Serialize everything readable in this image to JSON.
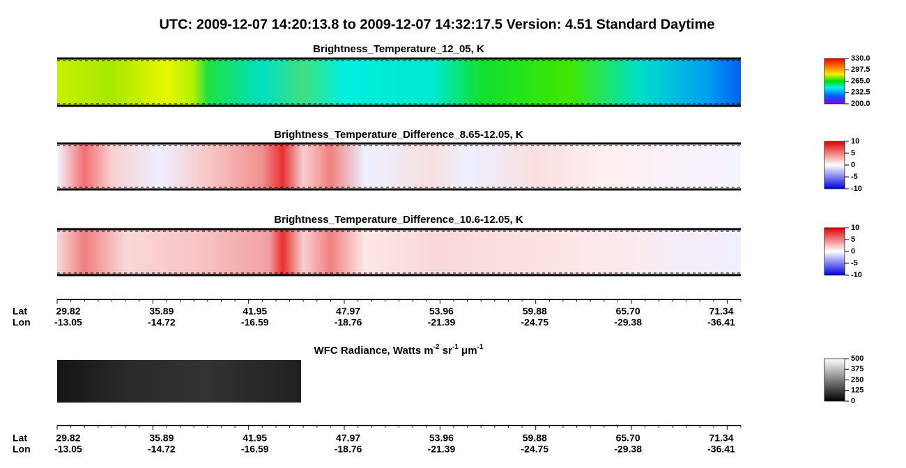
{
  "header": {
    "title": "UTC:  2009-12-07   14:20:13.8  to  2009-12-07   14:32:17.5    Version: 4.51  Standard Daytime"
  },
  "panels": [
    {
      "title": "Brightness_Temperature_12_05, K",
      "colorbar": [
        "330.0",
        "297.5",
        "265.0",
        "232.5",
        "200.0"
      ]
    },
    {
      "title": "Brightness_Temperature_Difference_8.65-12.05, K",
      "colorbar": [
        "10",
        "5",
        "0",
        "-5",
        "-10"
      ]
    },
    {
      "title": "Brightness_Temperature_Difference_10.6-12.05, K",
      "colorbar": [
        "10",
        "5",
        "0",
        "-5",
        "-10"
      ]
    },
    {
      "title_parts": [
        "WFC Radiance, Watts m",
        "-2",
        " sr",
        "-1",
        " μm",
        "-1"
      ],
      "colorbar": [
        "500",
        "375",
        "250",
        "125",
        "0"
      ]
    }
  ],
  "axes": [
    {
      "lat_label": "Lat",
      "lon_label": "Lon",
      "lat": [
        "29.82",
        "35.89",
        "41.95",
        "47.97",
        "53.96",
        "59.88",
        "65.70",
        "71.34"
      ],
      "lon": [
        "-13.05",
        "-14.72",
        "-16.59",
        "-18.76",
        "-21.39",
        "-24.75",
        "-29.38",
        "-36.41"
      ]
    },
    {
      "lat_label": "Lat",
      "lon_label": "Lon",
      "lat": [
        "29.82",
        "35.89",
        "41.95",
        "47.97",
        "53.96",
        "59.88",
        "65.70",
        "71.34"
      ],
      "lon": [
        "-13.05",
        "-14.72",
        "-16.59",
        "-18.76",
        "-21.39",
        "-24.75",
        "-29.38",
        "-36.41"
      ]
    }
  ]
}
